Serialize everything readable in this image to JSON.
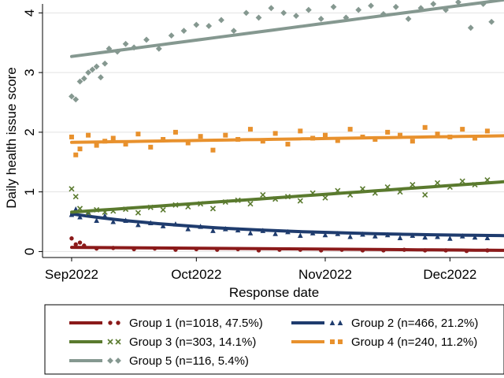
{
  "chart_data": {
    "type": "scatter",
    "title": "",
    "xlabel": "Response date",
    "ylabel": "Daily health issue score",
    "xlim": [
      -7,
      104
    ],
    "ylim": [
      -0.1,
      4.15
    ],
    "x_ticks": [
      {
        "value": 0,
        "label": "Sep2022"
      },
      {
        "value": 30,
        "label": "Oct2022"
      },
      {
        "value": 61,
        "label": "Nov2022"
      },
      {
        "value": 91,
        "label": "Dec2022"
      }
    ],
    "y_ticks": [
      0,
      1,
      2,
      3,
      4
    ],
    "grid": true,
    "legend_position": "bottom",
    "series": [
      {
        "name": "Group 1 (n=1018, 47.5%)",
        "color": "#8b1a1a",
        "marker": "circle",
        "fit_start": 0.07,
        "fit_end": 0.02,
        "x": [
          0,
          1,
          2,
          3,
          6,
          10,
          15,
          20,
          25,
          30,
          35,
          40,
          45,
          50,
          55,
          60,
          65,
          70,
          75,
          80,
          85,
          90,
          95,
          100
        ],
        "values": [
          0.22,
          0.12,
          0.15,
          0.1,
          0.05,
          0.06,
          0.04,
          0.05,
          0.03,
          0.04,
          0.03,
          0.04,
          0.02,
          0.03,
          0.03,
          0.02,
          0.03,
          0.02,
          0.02,
          0.03,
          0.02,
          0.02,
          0.01,
          0.02
        ]
      },
      {
        "name": "Group 2 (n=466, 21.2%)",
        "color": "#1f3c6e",
        "marker": "triangle",
        "fit_start": 0.63,
        "fit_end": 0.24,
        "x": [
          0,
          1,
          2,
          4,
          6,
          8,
          10,
          13,
          16,
          19,
          22,
          25,
          28,
          31,
          34,
          37,
          40,
          43,
          46,
          49,
          52,
          55,
          58,
          61,
          64,
          67,
          70,
          73,
          76,
          79,
          82,
          85,
          88,
          91,
          94,
          97,
          100
        ],
        "values": [
          0.62,
          0.71,
          0.58,
          0.66,
          0.52,
          0.6,
          0.5,
          0.52,
          0.45,
          0.48,
          0.43,
          0.46,
          0.38,
          0.42,
          0.35,
          0.38,
          0.36,
          0.31,
          0.35,
          0.3,
          0.33,
          0.27,
          0.31,
          0.28,
          0.3,
          0.25,
          0.29,
          0.26,
          0.28,
          0.23,
          0.27,
          0.24,
          0.25,
          0.22,
          0.26,
          0.24,
          0.23
        ]
      },
      {
        "name": "Group 3 (n=303, 14.1%)",
        "color": "#5a7a2e",
        "marker": "x",
        "fit_start": 0.66,
        "fit_end": 1.17,
        "x": [
          0,
          1,
          2,
          4,
          6,
          8,
          10,
          13,
          16,
          19,
          22,
          25,
          28,
          31,
          34,
          37,
          40,
          43,
          46,
          49,
          52,
          55,
          58,
          61,
          64,
          67,
          70,
          73,
          76,
          79,
          82,
          85,
          88,
          91,
          94,
          97,
          100
        ],
        "values": [
          1.05,
          0.92,
          0.72,
          0.65,
          0.7,
          0.66,
          0.68,
          0.71,
          0.65,
          0.74,
          0.7,
          0.78,
          0.75,
          0.8,
          0.72,
          0.83,
          0.86,
          0.8,
          0.95,
          0.88,
          0.92,
          0.85,
          0.98,
          0.9,
          1.02,
          0.95,
          1.05,
          0.98,
          1.08,
          1.0,
          1.12,
          0.95,
          1.15,
          1.08,
          1.18,
          1.12,
          1.2
        ]
      },
      {
        "name": "Group 4 (n=240, 11.2%)",
        "color": "#e8912d",
        "marker": "square",
        "fit_start": 1.83,
        "fit_end": 1.94,
        "x": [
          0,
          1,
          2,
          4,
          6,
          8,
          10,
          13,
          16,
          19,
          22,
          25,
          28,
          31,
          34,
          37,
          40,
          43,
          46,
          49,
          52,
          55,
          58,
          61,
          64,
          67,
          70,
          73,
          76,
          79,
          82,
          85,
          88,
          91,
          94,
          97,
          100
        ],
        "values": [
          1.92,
          1.62,
          1.72,
          1.95,
          1.78,
          1.85,
          1.9,
          1.8,
          1.97,
          1.75,
          1.88,
          2.0,
          1.82,
          1.93,
          1.7,
          1.95,
          1.88,
          2.05,
          1.85,
          1.98,
          1.8,
          2.02,
          1.9,
          1.95,
          1.86,
          2.05,
          1.92,
          1.88,
          2.0,
          1.95,
          1.85,
          2.08,
          1.97,
          1.92,
          2.05,
          1.9,
          2.02
        ]
      },
      {
        "name": "Group 5 (n=116, 5.4%)",
        "color": "#859890",
        "marker": "diamond",
        "fit_start": 3.27,
        "fit_end": 4.22,
        "x": [
          0,
          1,
          2,
          3,
          4,
          5,
          6,
          7,
          8,
          9,
          11,
          13,
          15,
          18,
          21,
          24,
          27,
          30,
          33,
          36,
          39,
          42,
          45,
          48,
          51,
          54,
          57,
          60,
          63,
          66,
          69,
          72,
          75,
          78,
          81,
          84,
          87,
          90,
          93,
          96,
          99,
          101
        ],
        "values": [
          2.6,
          2.55,
          2.85,
          2.9,
          3.0,
          3.05,
          3.1,
          2.92,
          3.15,
          3.4,
          3.35,
          3.48,
          3.42,
          3.55,
          3.4,
          3.62,
          3.7,
          3.8,
          3.78,
          3.88,
          3.7,
          4.0,
          3.92,
          4.08,
          4.0,
          3.95,
          4.05,
          3.9,
          4.1,
          3.92,
          4.05,
          4.12,
          3.98,
          4.1,
          3.9,
          4.08,
          4.15,
          4.05,
          4.18,
          3.75,
          4.15,
          3.85
        ]
      }
    ]
  }
}
